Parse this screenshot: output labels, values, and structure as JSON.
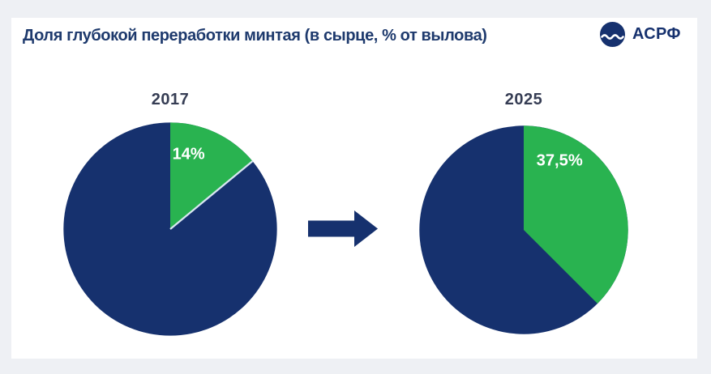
{
  "header": {
    "title": "Доля глубокой переработки минтая (в сырце, % от вылова)",
    "logo_text": "АСРФ"
  },
  "colors": {
    "navy": "#16316e",
    "green": "#29b350",
    "title_text": "#1e3a6d",
    "year_text": "#363d54",
    "percent_label_text": "#ffffff",
    "card_bg": "#ffffff",
    "page_bg": "#eef0f4",
    "separator_line": "#d9e6f2"
  },
  "chart_data": {
    "type": "pie",
    "title": "Доля глубокой переработки минтая (в сырце, % от вылова)",
    "legend_position": "none",
    "charts": [
      {
        "year": "2017",
        "slices": [
          {
            "value": 14,
            "label": "14%",
            "color": "#29b350"
          },
          {
            "value": 86,
            "label": "",
            "color": "#16316e"
          }
        ]
      },
      {
        "year": "2025",
        "slices": [
          {
            "value": 37.5,
            "label": "37,5%",
            "color": "#29b350"
          },
          {
            "value": 62.5,
            "label": "",
            "color": "#16316e"
          }
        ]
      }
    ]
  }
}
